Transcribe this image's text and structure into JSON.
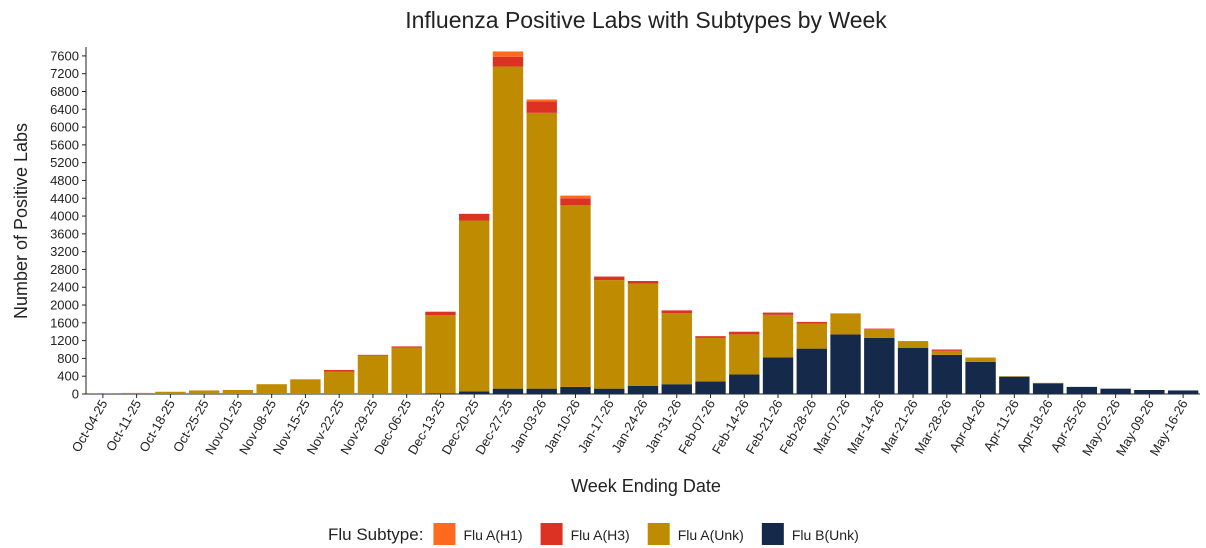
{
  "chart_data": {
    "type": "stacked_bar",
    "title": "Influenza Positive Labs with Subtypes by Week",
    "x_label": "Week Ending Date",
    "y_label": "Number of Positive Labs",
    "legend_title": "Flu Subtype:",
    "legend_position": "bottom",
    "categories": [
      "Oct-04-25",
      "Oct-11-25",
      "Oct-18-25",
      "Oct-25-25",
      "Nov-01-25",
      "Nov-08-25",
      "Nov-15-25",
      "Nov-22-25",
      "Nov-29-25",
      "Dec-06-25",
      "Dec-13-25",
      "Dec-20-25",
      "Dec-27-25",
      "Jan-03-26",
      "Jan-10-26",
      "Jan-17-26",
      "Jan-24-26",
      "Jan-31-26",
      "Feb-07-26",
      "Feb-14-26",
      "Feb-21-26",
      "Feb-28-26",
      "Mar-07-26",
      "Mar-14-26",
      "Mar-21-26",
      "Mar-28-26",
      "Apr-04-26",
      "Apr-11-26",
      "Apr-18-26",
      "Apr-25-26",
      "May-02-26",
      "May-09-26",
      "May-16-26"
    ],
    "series": [
      {
        "name": "Flu B(Unk)",
        "color": "#15294a",
        "values": [
          0,
          0,
          0,
          0,
          0,
          0,
          0,
          0,
          0,
          0,
          10,
          60,
          120,
          120,
          160,
          120,
          180,
          220,
          280,
          440,
          820,
          1020,
          1340,
          1260,
          1040,
          880,
          720,
          390,
          240,
          160,
          120,
          90,
          80
        ]
      },
      {
        "name": "Flu A(Unk)",
        "color": "#bf8b00",
        "values": [
          20,
          25,
          50,
          80,
          90,
          220,
          330,
          500,
          860,
          1040,
          1760,
          3840,
          7240,
          6200,
          4080,
          2440,
          2300,
          1600,
          980,
          900,
          960,
          560,
          460,
          200,
          150,
          90,
          100,
          10,
          10,
          0,
          0,
          0,
          0
        ]
      },
      {
        "name": "Flu A(H3)",
        "color": "#dc3224",
        "values": [
          0,
          0,
          0,
          0,
          0,
          0,
          0,
          40,
          20,
          30,
          80,
          150,
          220,
          260,
          160,
          80,
          60,
          60,
          40,
          60,
          50,
          40,
          10,
          10,
          0,
          30,
          0,
          0,
          0,
          0,
          0,
          0,
          0
        ]
      },
      {
        "name": "Flu A(H1)",
        "color": "#ff6a1f",
        "values": [
          0,
          0,
          0,
          0,
          0,
          0,
          0,
          0,
          0,
          0,
          0,
          0,
          120,
          40,
          60,
          0,
          0,
          0,
          0,
          0,
          0,
          0,
          0,
          0,
          0,
          0,
          0,
          0,
          0,
          0,
          0,
          0,
          0
        ]
      }
    ],
    "legend_order": [
      3,
      2,
      1,
      0
    ],
    "ylim": [
      0,
      7800
    ],
    "yticks": [
      0,
      400,
      800,
      1200,
      1600,
      2000,
      2400,
      2800,
      3200,
      3600,
      4000,
      4400,
      4800,
      5200,
      5600,
      6000,
      6400,
      6800,
      7200,
      7600
    ],
    "grid": false
  }
}
